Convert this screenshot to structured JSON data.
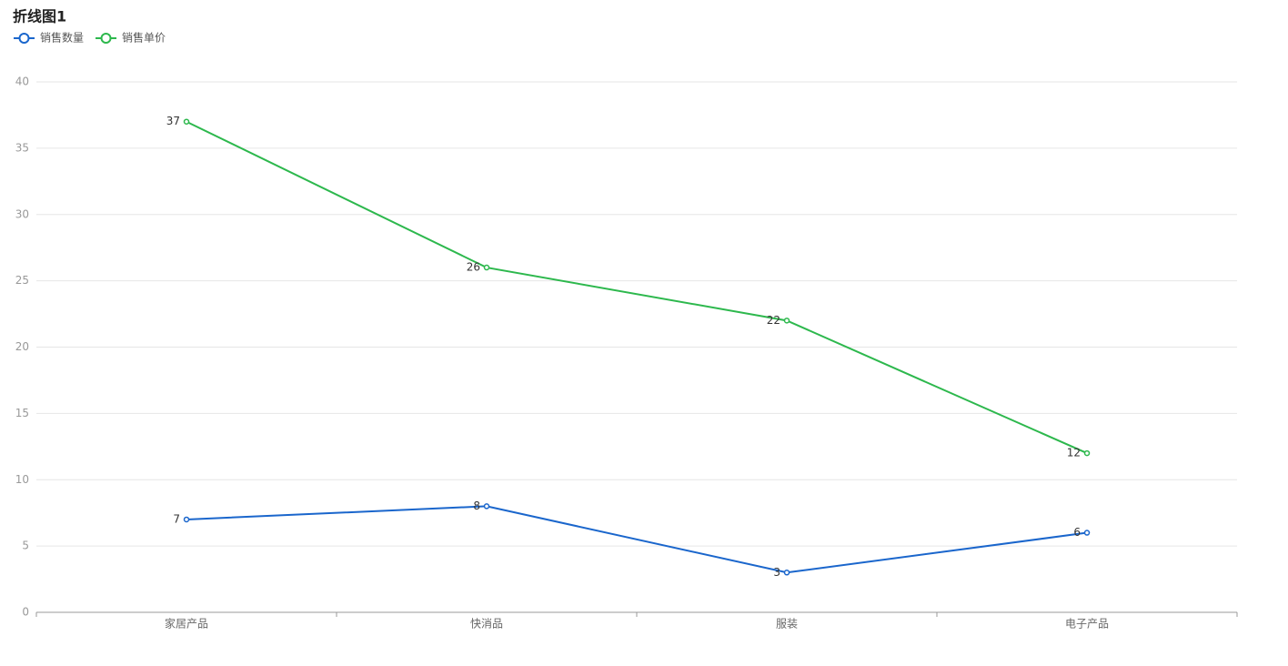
{
  "chart_data": {
    "type": "line",
    "title": "折线图1",
    "categories": [
      "家居产品",
      "快消品",
      "服装",
      "电子产品"
    ],
    "series": [
      {
        "name": "销售数量",
        "color": "#1a66cc",
        "values": [
          7,
          8,
          3,
          6
        ]
      },
      {
        "name": "销售单价",
        "color": "#2db84d",
        "values": [
          37,
          26,
          22,
          12
        ]
      }
    ],
    "ylim": [
      0,
      40
    ],
    "yticks": [
      0,
      5,
      10,
      15,
      20,
      25,
      30,
      35,
      40
    ],
    "grid": true,
    "legend": "top-left"
  }
}
